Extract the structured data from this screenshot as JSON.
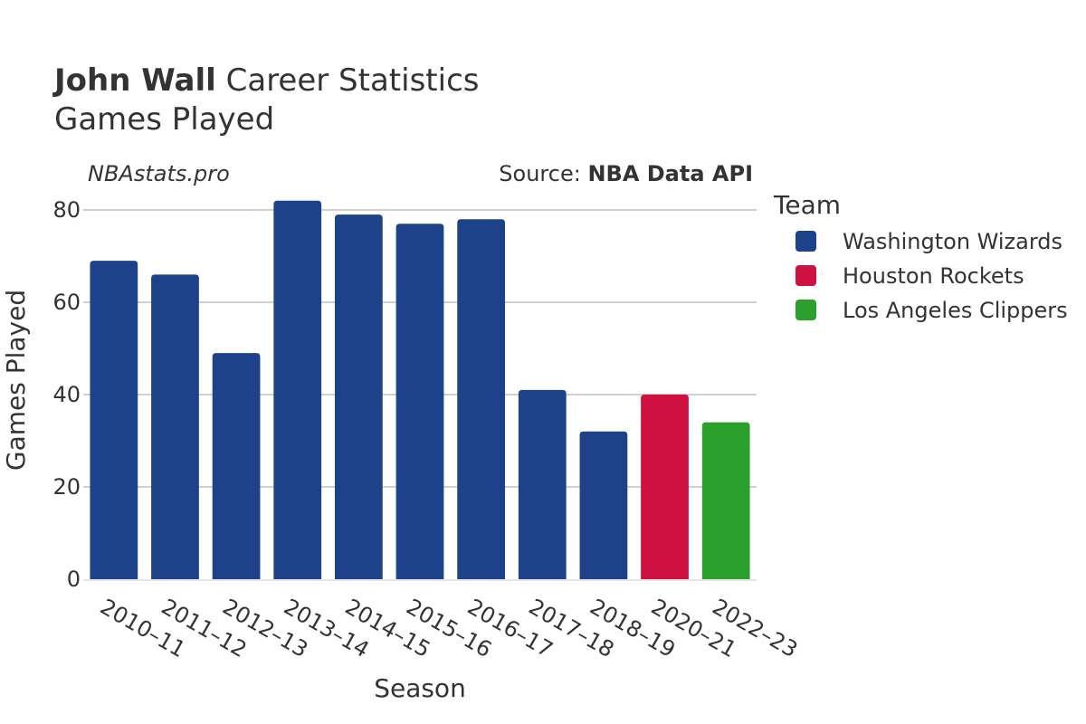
{
  "header": {
    "title_bold": "John Wall",
    "title_rest": " Career Statistics",
    "subtitle": "Games Played",
    "site": "NBAstats.pro",
    "source_prefix": "Source: ",
    "source_bold": "NBA Data API"
  },
  "legend": {
    "title": "Team",
    "items": [
      {
        "label": "Washington Wizards",
        "color": "#1d428a"
      },
      {
        "label": "Houston Rockets",
        "color": "#ce1141"
      },
      {
        "label": "Los Angeles Clippers",
        "color": "#2ca02c"
      }
    ]
  },
  "chart_data": {
    "type": "bar",
    "title": "John Wall Career Statistics",
    "subtitle": "Games Played",
    "xlabel": "Season",
    "ylabel": "Games Played",
    "ylim": [
      0,
      85
    ],
    "yticks": [
      0,
      20,
      40,
      60,
      80
    ],
    "grid": true,
    "legend_position": "right",
    "categories": [
      "2010–11",
      "2011–12",
      "2012–13",
      "2013–14",
      "2014–15",
      "2015–16",
      "2016–17",
      "2017–18",
      "2018–19",
      "2020–21",
      "2022–23"
    ],
    "values": [
      69,
      66,
      49,
      82,
      79,
      77,
      78,
      41,
      32,
      40,
      34
    ],
    "teams": [
      "Washington Wizards",
      "Washington Wizards",
      "Washington Wizards",
      "Washington Wizards",
      "Washington Wizards",
      "Washington Wizards",
      "Washington Wizards",
      "Washington Wizards",
      "Washington Wizards",
      "Houston Rockets",
      "Los Angeles Clippers"
    ]
  }
}
